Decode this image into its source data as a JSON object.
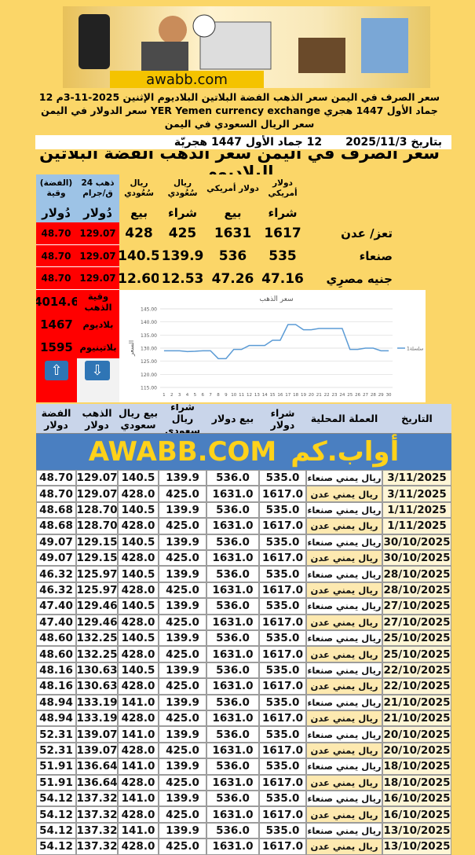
{
  "header": {
    "logo_text": "awabb.com",
    "headline": "سعر الصرف في اليمن سعر الذهب الفضة البلاتين البلاديوم الإثنين 2025-11-3م 12 جماد الأول 1447 هجري YER Yemen currency exchange سعر الدولار في اليمن سعر الريال السعودي في اليمن",
    "date_gregorian": "بتاريخ 2025/11/3",
    "date_hijri": "12  جماد الأول 1447 هجريّة",
    "title": "سعر الصرف في اليمن سعر الذهب الفضة البلاتين البلاديوم"
  },
  "summary": {
    "columns": [
      {
        "top": "دولار أمريكي",
        "bottom": "شراء"
      },
      {
        "top": "دولار أمريكي",
        "bottom": "بيع"
      },
      {
        "top": "ريال سُعُودي",
        "bottom": "شراء"
      },
      {
        "top": "ريال سُعُودي",
        "bottom": "بيع"
      },
      {
        "top": "ذهب 24 ق/جرام",
        "bottom": "دُولار"
      },
      {
        "top": "(الفضة) وقية",
        "bottom": "دُولار"
      }
    ],
    "rows": [
      [
        "تعز/ عدن",
        "1617",
        "1631",
        "425",
        "428",
        "129.07",
        "48.70"
      ],
      [
        "صنعاء",
        "535",
        "536",
        "139.9",
        "140.5",
        "129.07",
        "48.70"
      ],
      [
        "جنيه مصرِي",
        "47.16",
        "47.26",
        "12.53",
        "12.60",
        "129.07",
        "48.70"
      ]
    ],
    "extras": [
      {
        "label": "وقية الذهب",
        "value": "4014.6"
      },
      {
        "label": "بلاديوم",
        "value": "1467"
      },
      {
        "label": "بلاتينيوم",
        "value": "1595"
      }
    ]
  },
  "chart_data": {
    "type": "line",
    "title": "سعر الذهب",
    "y_label": "السعر",
    "categories": [
      1,
      2,
      3,
      4,
      5,
      6,
      7,
      8,
      9,
      10,
      11,
      12,
      13,
      14,
      15,
      16,
      17,
      18,
      19,
      20,
      21,
      22,
      23,
      24,
      25,
      26,
      27,
      28,
      29,
      30
    ],
    "series": [
      {
        "name": "سلسلة1",
        "color": "#5b9bd5",
        "values": [
          129,
          129,
          129,
          128.7,
          128.8,
          129,
          129,
          126,
          126,
          129.5,
          129.5,
          131,
          131,
          131,
          133,
          133,
          139,
          139,
          137,
          137,
          137.5,
          137.5,
          137.5,
          137.5,
          129.5,
          129.5,
          130,
          130,
          129,
          129
        ]
      }
    ],
    "ylim": [
      115,
      145
    ],
    "yticks": [
      {
        "value": 115,
        "label": "115.00"
      },
      {
        "value": 120,
        "label": "120.00"
      },
      {
        "value": 125,
        "label": "125.00"
      },
      {
        "value": 130,
        "label": "130.00"
      },
      {
        "value": 135,
        "label": "135.00"
      },
      {
        "value": 140,
        "label": "140.00"
      },
      {
        "value": 145,
        "label": "145.00"
      }
    ],
    "grid": true,
    "legend": "right"
  },
  "table": {
    "columns": [
      "الفضة دولار",
      "الذهب دولار",
      "بيع ريال سعودي",
      "شراء ريال سعودي",
      "بيع دولار",
      "شراء دولار",
      "العملة المحلية",
      "التاريخ"
    ],
    "banner_latin": "AWABB.COM",
    "banner_arabic": "أواب.كم",
    "rows": [
      [
        "48.70",
        "129.07",
        "140.5",
        "139.9",
        "536.0",
        "535.0",
        "ريال يمني صنعاء",
        "3/11/2025"
      ],
      [
        "48.70",
        "129.07",
        "428.0",
        "425.0",
        "1631.0",
        "1617.0",
        "ريال يمني عدن",
        "3/11/2025"
      ],
      [
        "48.68",
        "128.70",
        "140.5",
        "139.9",
        "536.0",
        "535.0",
        "ريال يمني صنعاء",
        "1/11/2025"
      ],
      [
        "48.68",
        "128.70",
        "428.0",
        "425.0",
        "1631.0",
        "1617.0",
        "ريال يمني عدن",
        "1/11/2025"
      ],
      [
        "49.07",
        "129.15",
        "140.5",
        "139.9",
        "536.0",
        "535.0",
        "ريال يمني صنعاء",
        "30/10/2025"
      ],
      [
        "49.07",
        "129.15",
        "428.0",
        "425.0",
        "1631.0",
        "1617.0",
        "ريال يمني عدن",
        "30/10/2025"
      ],
      [
        "46.32",
        "125.97",
        "140.5",
        "139.9",
        "536.0",
        "535.0",
        "ريال يمني صنعاء",
        "28/10/2025"
      ],
      [
        "46.32",
        "125.97",
        "428.0",
        "425.0",
        "1631.0",
        "1617.0",
        "ريال يمني عدن",
        "28/10/2025"
      ],
      [
        "47.40",
        "129.46",
        "140.5",
        "139.9",
        "536.0",
        "535.0",
        "ريال يمني صنعاء",
        "27/10/2025"
      ],
      [
        "47.40",
        "129.46",
        "428.0",
        "425.0",
        "1631.0",
        "1617.0",
        "ريال يمني عدن",
        "27/10/2025"
      ],
      [
        "48.60",
        "132.25",
        "140.5",
        "139.9",
        "536.0",
        "535.0",
        "ريال يمني صنعاء",
        "25/10/2025"
      ],
      [
        "48.60",
        "132.25",
        "428.0",
        "425.0",
        "1631.0",
        "1617.0",
        "ريال يمني عدن",
        "25/10/2025"
      ],
      [
        "48.16",
        "130.63",
        "140.5",
        "139.9",
        "536.0",
        "535.0",
        "ريال يمني صنعاء",
        "22/10/2025"
      ],
      [
        "48.16",
        "130.63",
        "428.0",
        "425.0",
        "1631.0",
        "1617.0",
        "ريال يمني عدن",
        "22/10/2025"
      ],
      [
        "48.94",
        "133.19",
        "141.0",
        "139.9",
        "536.0",
        "535.0",
        "ريال يمني صنعاء",
        "21/10/2025"
      ],
      [
        "48.94",
        "133.19",
        "428.0",
        "425.0",
        "1631.0",
        "1617.0",
        "ريال يمني عدن",
        "21/10/2025"
      ],
      [
        "52.31",
        "139.07",
        "141.0",
        "139.9",
        "536.0",
        "535.0",
        "ريال يمني صنعاء",
        "20/10/2025"
      ],
      [
        "52.31",
        "139.07",
        "428.0",
        "425.0",
        "1631.0",
        "1617.0",
        "ريال يمني عدن",
        "20/10/2025"
      ],
      [
        "51.91",
        "136.64",
        "141.0",
        "139.9",
        "536.0",
        "535.0",
        "ريال يمني صنعاء",
        "18/10/2025"
      ],
      [
        "51.91",
        "136.64",
        "428.0",
        "425.0",
        "1631.0",
        "1617.0",
        "ريال يمني عدن",
        "18/10/2025"
      ],
      [
        "54.12",
        "137.32",
        "141.0",
        "139.9",
        "536.0",
        "535.0",
        "ريال يمني صنعاء",
        "16/10/2025"
      ],
      [
        "54.12",
        "137.32",
        "428.0",
        "425.0",
        "1631.0",
        "1617.0",
        "ريال يمني عدن",
        "16/10/2025"
      ],
      [
        "54.12",
        "137.32",
        "141.0",
        "139.9",
        "536.0",
        "535.0",
        "ريال يمني صنعاء",
        "13/10/2025"
      ],
      [
        "54.12",
        "137.32",
        "428.0",
        "425.0",
        "1631.0",
        "1617.0",
        "ريال يمني عدن",
        "13/10/2025"
      ]
    ]
  }
}
